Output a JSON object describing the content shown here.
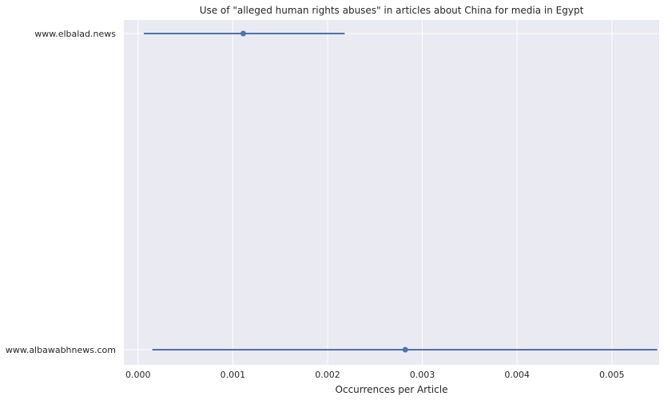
{
  "chart_data": {
    "type": "scatter",
    "subtype": "point-with-error-bars",
    "title": "Use of \"alleged human rights abuses\" in articles about China for media in Egypt",
    "xlabel": "Occurrences per Article",
    "ylabel": "",
    "xlim": [
      -0.00015,
      0.0055
    ],
    "xticks": [
      "0.000",
      "0.001",
      "0.002",
      "0.003",
      "0.004",
      "0.005"
    ],
    "xtick_values": [
      0.0,
      0.001,
      0.002,
      0.003,
      0.004,
      0.005
    ],
    "grid": true,
    "categories": [
      "www.elbalad.news",
      "www.albawabhnews.com"
    ],
    "points": [
      {
        "category": "www.elbalad.news",
        "value": 0.00111,
        "ci_low": 6e-05,
        "ci_high": 0.00218
      },
      {
        "category": "www.albawabhnews.com",
        "value": 0.00282,
        "ci_low": 0.00015,
        "ci_high": 0.00548
      }
    ],
    "colors": {
      "series": "#4c72b0",
      "background": "#eaeaf2",
      "grid": "#ffffff"
    }
  }
}
